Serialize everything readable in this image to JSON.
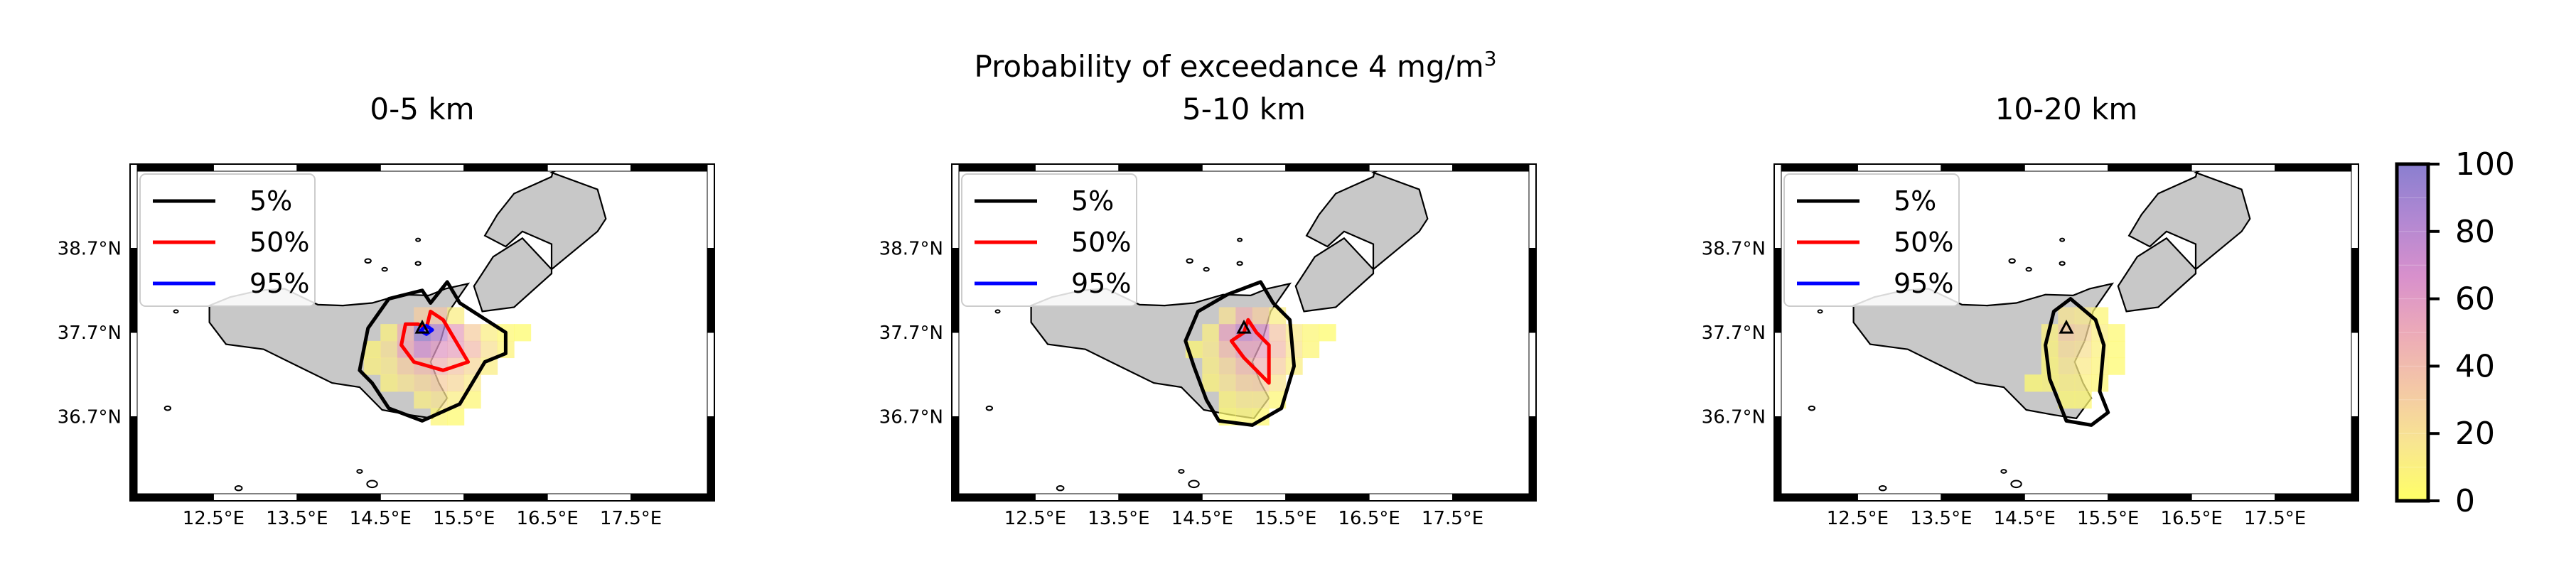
{
  "figure": {
    "suptitle": "Probability of exceedance 4 mg/m",
    "suptitle_superscript": "3"
  },
  "chart_data": [
    {
      "type": "heatmap",
      "title": "0-5 km",
      "lon_ticks": [
        "12.5°E",
        "13.5°E",
        "14.5°E",
        "15.5°E",
        "16.5°E",
        "17.5°E"
      ],
      "lat_ticks": [
        "38.7°N",
        "37.7°N",
        "36.7°N"
      ],
      "lon_range": [
        11.5,
        18.5
      ],
      "lat_range": [
        35.7,
        39.7
      ],
      "volcano": {
        "lon": 15.0,
        "lat": 37.75
      },
      "legend": {
        "placement": "top-left",
        "entries": [
          {
            "label": "5%",
            "color": "#000000"
          },
          {
            "label": "50%",
            "color": "#ff0000"
          },
          {
            "label": "95%",
            "color": "#0000ff"
          }
        ]
      },
      "contours": {
        "5%": [
          [
            14.25,
            37.25
          ],
          [
            14.35,
            37.75
          ],
          [
            14.6,
            38.1
          ],
          [
            15.0,
            38.2
          ],
          [
            15.1,
            38.05
          ],
          [
            15.3,
            38.3
          ],
          [
            15.45,
            38.05
          ],
          [
            16.0,
            37.7
          ],
          [
            16.0,
            37.45
          ],
          [
            15.75,
            37.35
          ],
          [
            15.45,
            36.85
          ],
          [
            15.0,
            36.65
          ],
          [
            14.6,
            36.8
          ],
          [
            14.4,
            37.1
          ]
        ],
        "50%": [
          [
            14.95,
            37.8
          ],
          [
            15.05,
            37.75
          ],
          [
            15.1,
            37.95
          ],
          [
            15.25,
            37.85
          ],
          [
            15.55,
            37.35
          ],
          [
            15.25,
            37.25
          ],
          [
            14.9,
            37.35
          ],
          [
            14.75,
            37.55
          ],
          [
            14.8,
            37.8
          ]
        ],
        "95%": [
          [
            14.98,
            37.72
          ],
          [
            15.05,
            37.78
          ],
          [
            15.12,
            37.73
          ],
          [
            15.05,
            37.68
          ]
        ]
      },
      "cells": [
        {
          "lon": 15.0,
          "lat": 37.9,
          "p": 30
        },
        {
          "lon": 15.2,
          "lat": 37.9,
          "p": 35
        },
        {
          "lon": 15.4,
          "lat": 37.9,
          "p": 12
        },
        {
          "lon": 14.6,
          "lat": 37.7,
          "p": 10
        },
        {
          "lon": 14.8,
          "lat": 37.7,
          "p": 45
        },
        {
          "lon": 15.0,
          "lat": 37.7,
          "p": 95
        },
        {
          "lon": 15.2,
          "lat": 37.7,
          "p": 80
        },
        {
          "lon": 15.4,
          "lat": 37.7,
          "p": 55
        },
        {
          "lon": 15.6,
          "lat": 37.7,
          "p": 30
        },
        {
          "lon": 15.8,
          "lat": 37.7,
          "p": 12
        },
        {
          "lon": 16.0,
          "lat": 37.7,
          "p": 5
        },
        {
          "lon": 16.2,
          "lat": 37.7,
          "p": 3
        },
        {
          "lon": 14.4,
          "lat": 37.5,
          "p": 8
        },
        {
          "lon": 14.6,
          "lat": 37.5,
          "p": 20
        },
        {
          "lon": 14.8,
          "lat": 37.5,
          "p": 50
        },
        {
          "lon": 15.0,
          "lat": 37.5,
          "p": 70
        },
        {
          "lon": 15.2,
          "lat": 37.5,
          "p": 60
        },
        {
          "lon": 15.4,
          "lat": 37.5,
          "p": 55
        },
        {
          "lon": 15.6,
          "lat": 37.5,
          "p": 40
        },
        {
          "lon": 15.8,
          "lat": 37.5,
          "p": 20
        },
        {
          "lon": 16.0,
          "lat": 37.5,
          "p": 8
        },
        {
          "lon": 14.4,
          "lat": 37.3,
          "p": 10
        },
        {
          "lon": 14.6,
          "lat": 37.3,
          "p": 15
        },
        {
          "lon": 14.8,
          "lat": 37.3,
          "p": 30
        },
        {
          "lon": 15.0,
          "lat": 37.3,
          "p": 40
        },
        {
          "lon": 15.2,
          "lat": 37.3,
          "p": 45
        },
        {
          "lon": 15.4,
          "lat": 37.3,
          "p": 35
        },
        {
          "lon": 15.6,
          "lat": 37.3,
          "p": 25
        },
        {
          "lon": 15.8,
          "lat": 37.3,
          "p": 12
        },
        {
          "lon": 14.6,
          "lat": 37.1,
          "p": 10
        },
        {
          "lon": 14.8,
          "lat": 37.1,
          "p": 18
        },
        {
          "lon": 15.0,
          "lat": 37.1,
          "p": 25
        },
        {
          "lon": 15.2,
          "lat": 37.1,
          "p": 30
        },
        {
          "lon": 15.4,
          "lat": 37.1,
          "p": 25
        },
        {
          "lon": 15.6,
          "lat": 37.1,
          "p": 15
        },
        {
          "lon": 15.0,
          "lat": 36.9,
          "p": 12
        },
        {
          "lon": 15.2,
          "lat": 36.9,
          "p": 18
        },
        {
          "lon": 15.4,
          "lat": 36.9,
          "p": 12
        },
        {
          "lon": 15.6,
          "lat": 36.9,
          "p": 6
        },
        {
          "lon": 15.2,
          "lat": 36.7,
          "p": 6
        },
        {
          "lon": 15.4,
          "lat": 36.7,
          "p": 4
        }
      ]
    },
    {
      "type": "heatmap",
      "title": "5-10 km",
      "lon_ticks": [
        "12.5°E",
        "13.5°E",
        "14.5°E",
        "15.5°E",
        "16.5°E",
        "17.5°E"
      ],
      "lat_ticks": [
        "38.7°N",
        "37.7°N",
        "36.7°N"
      ],
      "lon_range": [
        11.5,
        18.5
      ],
      "lat_range": [
        35.7,
        39.7
      ],
      "volcano": {
        "lon": 15.0,
        "lat": 37.75
      },
      "legend": {
        "placement": "top-left",
        "entries": [
          {
            "label": "5%",
            "color": "#000000"
          },
          {
            "label": "50%",
            "color": "#ff0000"
          },
          {
            "label": "95%",
            "color": "#0000ff"
          }
        ]
      },
      "contours": {
        "5%": [
          [
            14.3,
            37.6
          ],
          [
            14.45,
            37.95
          ],
          [
            14.8,
            38.15
          ],
          [
            15.2,
            38.3
          ],
          [
            15.35,
            38.05
          ],
          [
            15.55,
            37.85
          ],
          [
            15.6,
            37.3
          ],
          [
            15.45,
            36.8
          ],
          [
            15.1,
            36.6
          ],
          [
            14.7,
            36.65
          ],
          [
            14.55,
            36.9
          ],
          [
            14.4,
            37.3
          ]
        ],
        "50%": [
          [
            14.85,
            37.6
          ],
          [
            15.0,
            37.7
          ],
          [
            15.05,
            37.85
          ],
          [
            15.15,
            37.7
          ],
          [
            15.3,
            37.55
          ],
          [
            15.3,
            37.1
          ],
          [
            15.15,
            37.25
          ],
          [
            15.0,
            37.4
          ]
        ],
        "95%": []
      },
      "cells": [
        {
          "lon": 14.8,
          "lat": 37.9,
          "p": 20
        },
        {
          "lon": 15.0,
          "lat": 37.9,
          "p": 45
        },
        {
          "lon": 15.2,
          "lat": 37.9,
          "p": 30
        },
        {
          "lon": 15.4,
          "lat": 37.9,
          "p": 12
        },
        {
          "lon": 14.6,
          "lat": 37.7,
          "p": 12
        },
        {
          "lon": 14.8,
          "lat": 37.7,
          "p": 55
        },
        {
          "lon": 15.0,
          "lat": 37.7,
          "p": 75
        },
        {
          "lon": 15.2,
          "lat": 37.7,
          "p": 65
        },
        {
          "lon": 15.4,
          "lat": 37.7,
          "p": 35
        },
        {
          "lon": 15.6,
          "lat": 37.7,
          "p": 15
        },
        {
          "lon": 15.8,
          "lat": 37.7,
          "p": 6
        },
        {
          "lon": 16.0,
          "lat": 37.7,
          "p": 3
        },
        {
          "lon": 14.4,
          "lat": 37.5,
          "p": 6
        },
        {
          "lon": 14.6,
          "lat": 37.5,
          "p": 15
        },
        {
          "lon": 14.8,
          "lat": 37.5,
          "p": 40
        },
        {
          "lon": 15.0,
          "lat": 37.5,
          "p": 55
        },
        {
          "lon": 15.2,
          "lat": 37.5,
          "p": 55
        },
        {
          "lon": 15.4,
          "lat": 37.5,
          "p": 40
        },
        {
          "lon": 15.6,
          "lat": 37.5,
          "p": 18
        },
        {
          "lon": 15.8,
          "lat": 37.5,
          "p": 6
        },
        {
          "lon": 14.6,
          "lat": 37.3,
          "p": 12
        },
        {
          "lon": 14.8,
          "lat": 37.3,
          "p": 25
        },
        {
          "lon": 15.0,
          "lat": 37.3,
          "p": 40
        },
        {
          "lon": 15.2,
          "lat": 37.3,
          "p": 45
        },
        {
          "lon": 15.4,
          "lat": 37.3,
          "p": 30
        },
        {
          "lon": 15.6,
          "lat": 37.3,
          "p": 12
        },
        {
          "lon": 14.6,
          "lat": 37.1,
          "p": 8
        },
        {
          "lon": 14.8,
          "lat": 37.1,
          "p": 18
        },
        {
          "lon": 15.0,
          "lat": 37.1,
          "p": 28
        },
        {
          "lon": 15.2,
          "lat": 37.1,
          "p": 30
        },
        {
          "lon": 15.4,
          "lat": 37.1,
          "p": 18
        },
        {
          "lon": 14.8,
          "lat": 36.9,
          "p": 8
        },
        {
          "lon": 15.0,
          "lat": 36.9,
          "p": 14
        },
        {
          "lon": 15.2,
          "lat": 36.9,
          "p": 14
        },
        {
          "lon": 15.4,
          "lat": 36.9,
          "p": 6
        },
        {
          "lon": 14.8,
          "lat": 36.7,
          "p": 4
        },
        {
          "lon": 15.0,
          "lat": 36.7,
          "p": 6
        },
        {
          "lon": 15.2,
          "lat": 36.7,
          "p": 5
        }
      ]
    },
    {
      "type": "heatmap",
      "title": "10-20 km",
      "lon_ticks": [
        "12.5°E",
        "13.5°E",
        "14.5°E",
        "15.5°E",
        "16.5°E",
        "17.5°E"
      ],
      "lat_ticks": [
        "38.7°N",
        "37.7°N",
        "36.7°N"
      ],
      "lon_range": [
        11.5,
        18.5
      ],
      "lat_range": [
        35.7,
        39.7
      ],
      "volcano": {
        "lon": 15.0,
        "lat": 37.75
      },
      "legend": {
        "placement": "top-left",
        "entries": [
          {
            "label": "5%",
            "color": "#000000"
          },
          {
            "label": "50%",
            "color": "#ff0000"
          },
          {
            "label": "95%",
            "color": "#0000ff"
          }
        ]
      },
      "contours": {
        "5%": [
          [
            14.85,
            37.95
          ],
          [
            15.05,
            38.1
          ],
          [
            15.35,
            37.85
          ],
          [
            15.45,
            37.55
          ],
          [
            15.4,
            37.0
          ],
          [
            15.5,
            36.75
          ],
          [
            15.3,
            36.6
          ],
          [
            15.0,
            36.65
          ],
          [
            14.9,
            36.9
          ],
          [
            14.8,
            37.15
          ],
          [
            14.75,
            37.55
          ]
        ],
        "50%": [],
        "95%": []
      },
      "cells": [
        {
          "lon": 15.0,
          "lat": 37.9,
          "p": 18
        },
        {
          "lon": 15.2,
          "lat": 37.9,
          "p": 15
        },
        {
          "lon": 15.4,
          "lat": 37.9,
          "p": 6
        },
        {
          "lon": 14.8,
          "lat": 37.7,
          "p": 10
        },
        {
          "lon": 15.0,
          "lat": 37.7,
          "p": 30
        },
        {
          "lon": 15.2,
          "lat": 37.7,
          "p": 25
        },
        {
          "lon": 15.4,
          "lat": 37.7,
          "p": 12
        },
        {
          "lon": 15.6,
          "lat": 37.7,
          "p": 5
        },
        {
          "lon": 14.8,
          "lat": 37.5,
          "p": 8
        },
        {
          "lon": 15.0,
          "lat": 37.5,
          "p": 22
        },
        {
          "lon": 15.2,
          "lat": 37.5,
          "p": 20
        },
        {
          "lon": 15.4,
          "lat": 37.5,
          "p": 10
        },
        {
          "lon": 15.6,
          "lat": 37.5,
          "p": 4
        },
        {
          "lon": 14.8,
          "lat": 37.3,
          "p": 6
        },
        {
          "lon": 15.0,
          "lat": 37.3,
          "p": 16
        },
        {
          "lon": 15.2,
          "lat": 37.3,
          "p": 14
        },
        {
          "lon": 15.4,
          "lat": 37.3,
          "p": 8
        },
        {
          "lon": 15.6,
          "lat": 37.3,
          "p": 4
        },
        {
          "lon": 14.6,
          "lat": 37.1,
          "p": 4
        },
        {
          "lon": 14.8,
          "lat": 37.1,
          "p": 6
        },
        {
          "lon": 15.0,
          "lat": 37.1,
          "p": 10
        },
        {
          "lon": 15.2,
          "lat": 37.1,
          "p": 10
        },
        {
          "lon": 15.4,
          "lat": 37.1,
          "p": 6
        },
        {
          "lon": 15.0,
          "lat": 36.9,
          "p": 5
        },
        {
          "lon": 15.2,
          "lat": 36.9,
          "p": 5
        }
      ]
    }
  ],
  "colorbar": {
    "ticks": [
      "0",
      "20",
      "40",
      "60",
      "80",
      "100"
    ],
    "range": [
      0,
      100
    ],
    "colors": [
      "#ffff66",
      "#f8e690",
      "#f4c8a6",
      "#ecaab8",
      "#d890cc",
      "#b288d2",
      "#8a7fd0"
    ]
  }
}
